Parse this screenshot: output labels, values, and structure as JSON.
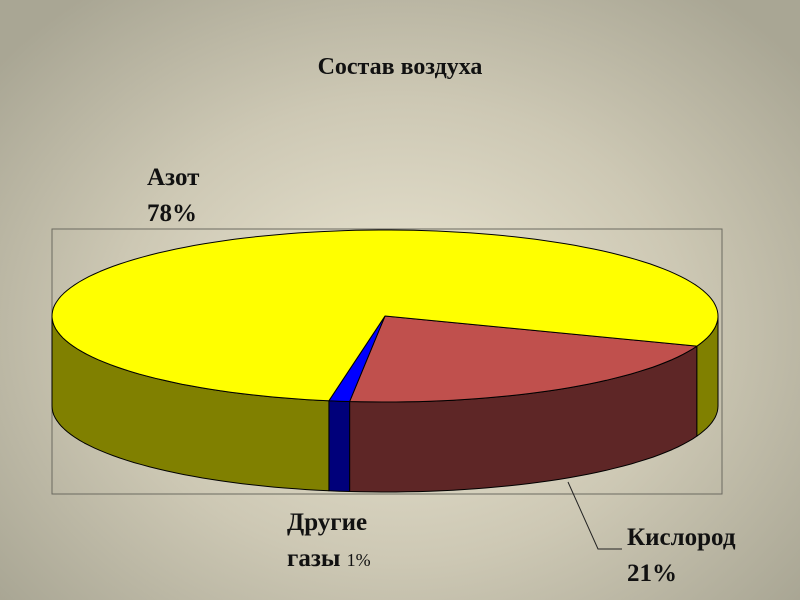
{
  "chart_data": {
    "type": "pie",
    "style": "3d",
    "title": "Состав воздуха",
    "slices": [
      {
        "label": "Кислород",
        "value": 21,
        "value_label": "21%",
        "color": "#C0504D",
        "side_color": "#5E2626"
      },
      {
        "label": "Другие газы",
        "value": 1,
        "value_label": "1%",
        "color": "#0000FF",
        "side_color": "#00007A"
      },
      {
        "label": "Азот",
        "value": 78,
        "value_label": "78%",
        "color": "#FFFF00",
        "side_color": "#808000"
      }
    ],
    "labels": {
      "nitrogen_line1": "Азот",
      "nitrogen_line2": "78%",
      "other_line1": "Другие",
      "other_line2": "газы",
      "other_pct": "1%",
      "oxygen_line1": "Кислород",
      "oxygen_line2": "21%"
    },
    "legend": "none"
  }
}
